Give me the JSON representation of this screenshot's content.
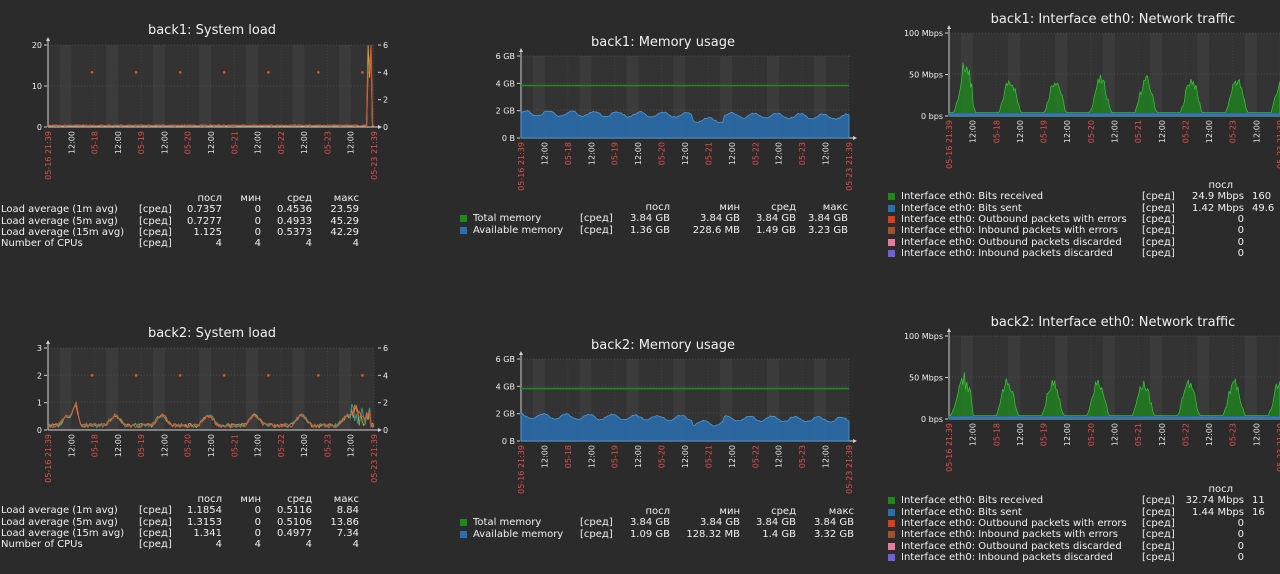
{
  "legend_header": {
    "last": "посл",
    "min": "мин",
    "avg": "сред",
    "max": "макс"
  },
  "x_dates": [
    "05-16 21:39",
    "12:00",
    "05-18",
    "12:00",
    "05-19",
    "12:00",
    "05-20",
    "12:00",
    "05-21",
    "12:00",
    "05-22",
    "12:00",
    "05-23",
    "12:00",
    "05-23 21:39"
  ],
  "chart_data": [
    {
      "id": "p1",
      "type": "area",
      "title": "back1: System load",
      "y_left_ticks": [
        "20",
        "10",
        "0"
      ],
      "y_right_ticks": [
        "6",
        "4",
        "2",
        "0"
      ],
      "ylim_left": [
        0,
        20
      ],
      "ylim_right": [
        0,
        6
      ],
      "series": [
        {
          "name": "Load average (1m avg)",
          "func": "[сред]",
          "last": "0.7357",
          "min": "0",
          "avg": "0.4536",
          "max": "23.59",
          "color": "#e8532b"
        },
        {
          "name": "Load average (5m avg)",
          "func": "[сред]",
          "last": "0.7277",
          "min": "0",
          "avg": "0.4933",
          "max": "45.29",
          "color": "#2f9c88"
        },
        {
          "name": "Load average (15m avg)",
          "func": "[сред]",
          "last": "1.125",
          "min": "0",
          "avg": "0.5373",
          "max": "42.29",
          "color": "#c8a03c"
        },
        {
          "name": "Number of CPUs",
          "func": "[сред]",
          "last": "4",
          "min": "4",
          "avg": "4",
          "max": "4",
          "color": "#e8532b"
        }
      ]
    },
    {
      "id": "p2",
      "type": "area",
      "title": "back1: Memory usage",
      "y_left_ticks": [
        "6 GB",
        "4 GB",
        "2 GB",
        "0 B"
      ],
      "ylim_left": [
        0,
        6
      ],
      "series": [
        {
          "name": "Total memory",
          "func": "[сред]",
          "last": "3.84 GB",
          "min": "3.84 GB",
          "avg": "3.84 GB",
          "max": "3.84 GB",
          "color": "#1e8a1e"
        },
        {
          "name": "Available memory",
          "func": "[сред]",
          "last": "1.36 GB",
          "min": "228.6 MB",
          "avg": "1.49 GB",
          "max": "3.23 GB",
          "color": "#2a6fb0"
        }
      ]
    },
    {
      "id": "p3",
      "type": "area",
      "title": "back1: Interface eth0: Network traffic",
      "y_left_ticks": [
        "100 Mbps",
        "50 Mbps",
        "0 bps"
      ],
      "ylim_left": [
        0,
        100
      ],
      "series": [
        {
          "name": "Interface eth0: Bits received",
          "func": "[сред]",
          "last": "24.9 Mbps",
          "extra": "160",
          "color": "#1e8a1e"
        },
        {
          "name": "Interface eth0: Bits sent",
          "func": "[сред]",
          "last": "1.42 Mbps",
          "extra": "49.6",
          "color": "#2a6fb0"
        },
        {
          "name": "Interface eth0: Outbound packets with errors",
          "func": "[сред]",
          "last": "0",
          "extra": "",
          "color": "#d8401a"
        },
        {
          "name": "Interface eth0: Inbound packets with errors",
          "func": "[сред]",
          "last": "0",
          "extra": "",
          "color": "#a0522d"
        },
        {
          "name": "Interface eth0: Outbound packets discarded",
          "func": "[сред]",
          "last": "0",
          "extra": "",
          "color": "#e87aa0"
        },
        {
          "name": "Interface eth0: Inbound packets discarded",
          "func": "[сред]",
          "last": "0",
          "extra": "",
          "color": "#7060d8"
        }
      ]
    },
    {
      "id": "p4",
      "type": "area",
      "title": "back2: System load",
      "y_left_ticks": [
        "3",
        "2",
        "1",
        "0"
      ],
      "y_right_ticks": [
        "6",
        "4",
        "2",
        "0"
      ],
      "ylim_left": [
        0,
        3
      ],
      "ylim_right": [
        0,
        6
      ],
      "series": [
        {
          "name": "Load average (1m avg)",
          "func": "[сред]",
          "last": "1.1854",
          "min": "0",
          "avg": "0.5116",
          "max": "8.84",
          "color": "#e8532b"
        },
        {
          "name": "Load average (5m avg)",
          "func": "[сред]",
          "last": "1.3153",
          "min": "0",
          "avg": "0.5106",
          "max": "13.86",
          "color": "#2f9c88"
        },
        {
          "name": "Load average (15m avg)",
          "func": "[сред]",
          "last": "1.341",
          "min": "0",
          "avg": "0.4977",
          "max": "7.34",
          "color": "#c8a03c"
        },
        {
          "name": "Number of CPUs",
          "func": "[сред]",
          "last": "4",
          "min": "4",
          "avg": "4",
          "max": "4",
          "color": "#e8532b"
        }
      ]
    },
    {
      "id": "p5",
      "type": "area",
      "title": "back2: Memory usage",
      "y_left_ticks": [
        "6 GB",
        "4 GB",
        "2 GB",
        "0 B"
      ],
      "ylim_left": [
        0,
        6
      ],
      "series": [
        {
          "name": "Total memory",
          "func": "[сред]",
          "last": "3.84 GB",
          "min": "3.84 GB",
          "avg": "3.84 GB",
          "max": "3.84 GB",
          "color": "#1e8a1e"
        },
        {
          "name": "Available memory",
          "func": "[сред]",
          "last": "1.09 GB",
          "min": "128.32 MB",
          "avg": "1.4 GB",
          "max": "3.32 GB",
          "color": "#2a6fb0"
        }
      ]
    },
    {
      "id": "p6",
      "type": "area",
      "title": "back2: Interface eth0: Network traffic",
      "y_left_ticks": [
        "100 Mbps",
        "50 Mbps",
        "0 bps"
      ],
      "ylim_left": [
        0,
        100
      ],
      "series": [
        {
          "name": "Interface eth0: Bits received",
          "func": "[сред]",
          "last": "32.74 Mbps",
          "extra": "11",
          "color": "#1e8a1e"
        },
        {
          "name": "Interface eth0: Bits sent",
          "func": "[сред]",
          "last": "1.44 Mbps",
          "extra": "16",
          "color": "#2a6fb0"
        },
        {
          "name": "Interface eth0: Outbound packets with errors",
          "func": "[сред]",
          "last": "0",
          "extra": "",
          "color": "#d8401a"
        },
        {
          "name": "Interface eth0: Inbound packets with errors",
          "func": "[сред]",
          "last": "0",
          "extra": "",
          "color": "#a0522d"
        },
        {
          "name": "Interface eth0: Outbound packets discarded",
          "func": "[сред]",
          "last": "0",
          "extra": "",
          "color": "#e87aa0"
        },
        {
          "name": "Interface eth0: Inbound packets discarded",
          "func": "[сред]",
          "last": "0",
          "extra": "",
          "color": "#7060d8"
        }
      ]
    }
  ]
}
